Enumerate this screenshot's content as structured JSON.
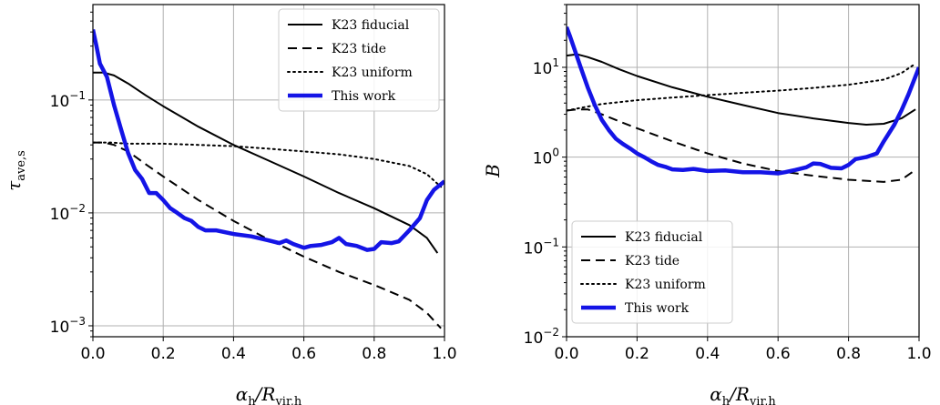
{
  "chart_data": [
    {
      "type": "line",
      "title": "",
      "xlabel": "α_h/R_vir,h",
      "ylabel": "τ_ave,s",
      "yscale": "log",
      "xlim": [
        0.0,
        1.0
      ],
      "ylim": [
        0.0008,
        0.7
      ],
      "grid": true,
      "legend_position": "top-right",
      "xticks": [
        {
          "v": 0.0,
          "label": "0.0"
        },
        {
          "v": 0.2,
          "label": "0.2"
        },
        {
          "v": 0.4,
          "label": "0.4"
        },
        {
          "v": 0.6,
          "label": "0.6"
        },
        {
          "v": 0.8,
          "label": "0.8"
        },
        {
          "v": 1.0,
          "label": "1.0"
        }
      ],
      "yticks": [
        {
          "v": 0.001,
          "base": "10",
          "exp": "−3"
        },
        {
          "v": 0.01,
          "base": "10",
          "exp": "−2"
        },
        {
          "v": 0.1,
          "base": "10",
          "exp": "−1"
        }
      ],
      "series": [
        {
          "name": "K23 fiducial",
          "style": "solid",
          "color": "#000000",
          "width": 2,
          "x": [
            0.0,
            0.03,
            0.06,
            0.1,
            0.15,
            0.2,
            0.3,
            0.4,
            0.5,
            0.6,
            0.7,
            0.8,
            0.9,
            0.95,
            0.98
          ],
          "y": [
            0.175,
            0.175,
            0.165,
            0.14,
            0.11,
            0.088,
            0.058,
            0.04,
            0.029,
            0.021,
            0.015,
            0.011,
            0.0078,
            0.006,
            0.0044
          ]
        },
        {
          "name": "K23 tide",
          "style": "dashed",
          "color": "#000000",
          "width": 2,
          "x": [
            0.0,
            0.03,
            0.06,
            0.1,
            0.15,
            0.2,
            0.3,
            0.4,
            0.5,
            0.6,
            0.7,
            0.8,
            0.9,
            0.95,
            0.99
          ],
          "y": [
            0.042,
            0.042,
            0.04,
            0.035,
            0.027,
            0.021,
            0.013,
            0.0085,
            0.0058,
            0.0041,
            0.003,
            0.0023,
            0.0017,
            0.0013,
            0.00095
          ]
        },
        {
          "name": "K23 uniform",
          "style": "dotted",
          "color": "#000000",
          "width": 2,
          "x": [
            0.0,
            0.05,
            0.1,
            0.2,
            0.3,
            0.4,
            0.5,
            0.6,
            0.7,
            0.8,
            0.9,
            0.95,
            0.99
          ],
          "y": [
            0.042,
            0.042,
            0.041,
            0.041,
            0.04,
            0.039,
            0.037,
            0.035,
            0.033,
            0.03,
            0.026,
            0.022,
            0.017
          ]
        },
        {
          "name": "This work",
          "style": "solid",
          "color": "#1414e6",
          "width": 4.5,
          "x": [
            0.0,
            0.01,
            0.02,
            0.04,
            0.06,
            0.08,
            0.1,
            0.12,
            0.14,
            0.16,
            0.18,
            0.2,
            0.22,
            0.24,
            0.26,
            0.28,
            0.3,
            0.32,
            0.35,
            0.4,
            0.45,
            0.5,
            0.53,
            0.55,
            0.57,
            0.6,
            0.62,
            0.65,
            0.68,
            0.7,
            0.72,
            0.75,
            0.78,
            0.8,
            0.82,
            0.85,
            0.87,
            0.9,
            0.93,
            0.95,
            0.97,
            1.0
          ],
          "y": [
            0.42,
            0.3,
            0.21,
            0.16,
            0.09,
            0.055,
            0.034,
            0.024,
            0.02,
            0.015,
            0.015,
            0.013,
            0.011,
            0.01,
            0.009,
            0.0085,
            0.0075,
            0.007,
            0.007,
            0.0065,
            0.0062,
            0.0057,
            0.0054,
            0.0057,
            0.0053,
            0.0049,
            0.0051,
            0.0052,
            0.0055,
            0.006,
            0.0053,
            0.0051,
            0.0047,
            0.0048,
            0.0055,
            0.0054,
            0.0056,
            0.007,
            0.009,
            0.013,
            0.016,
            0.019
          ]
        }
      ],
      "legend": [
        "K23 fiducial",
        "K23 tide",
        "K23 uniform",
        "This work"
      ]
    },
    {
      "type": "line",
      "title": "",
      "xlabel": "α_h/R_vir,h",
      "ylabel": "B",
      "yscale": "log",
      "xlim": [
        0.0,
        1.0
      ],
      "ylim": [
        0.01,
        50
      ],
      "grid": true,
      "legend_position": "lower-left",
      "xticks": [
        {
          "v": 0.0,
          "label": "0.0"
        },
        {
          "v": 0.2,
          "label": "0.2"
        },
        {
          "v": 0.4,
          "label": "0.4"
        },
        {
          "v": 0.6,
          "label": "0.6"
        },
        {
          "v": 0.8,
          "label": "0.8"
        },
        {
          "v": 1.0,
          "label": "1.0"
        }
      ],
      "yticks": [
        {
          "v": 0.01,
          "base": "10",
          "exp": "−2"
        },
        {
          "v": 0.1,
          "base": "10",
          "exp": "−1"
        },
        {
          "v": 1,
          "base": "10",
          "exp": "0"
        },
        {
          "v": 10,
          "base": "10",
          "exp": "1"
        }
      ],
      "series": [
        {
          "name": "K23 fiducial",
          "style": "solid",
          "color": "#000000",
          "width": 2,
          "x": [
            0.0,
            0.03,
            0.06,
            0.1,
            0.15,
            0.2,
            0.3,
            0.4,
            0.5,
            0.6,
            0.7,
            0.8,
            0.85,
            0.9,
            0.95,
            0.99
          ],
          "y": [
            13.5,
            14,
            13,
            11.5,
            9.5,
            8,
            6,
            4.7,
            3.8,
            3.1,
            2.7,
            2.4,
            2.3,
            2.35,
            2.7,
            3.4
          ]
        },
        {
          "name": "K23 tide",
          "style": "dashed",
          "color": "#000000",
          "width": 2,
          "x": [
            0.0,
            0.03,
            0.06,
            0.1,
            0.15,
            0.2,
            0.3,
            0.4,
            0.5,
            0.6,
            0.7,
            0.8,
            0.9,
            0.95,
            0.99
          ],
          "y": [
            3.3,
            3.4,
            3.4,
            3.0,
            2.5,
            2.1,
            1.5,
            1.1,
            0.85,
            0.7,
            0.62,
            0.56,
            0.53,
            0.56,
            0.72
          ]
        },
        {
          "name": "K23 uniform",
          "style": "dotted",
          "color": "#000000",
          "width": 2,
          "x": [
            0.0,
            0.05,
            0.1,
            0.2,
            0.3,
            0.4,
            0.5,
            0.6,
            0.7,
            0.8,
            0.9,
            0.95,
            0.99
          ],
          "y": [
            3.3,
            3.6,
            3.9,
            4.3,
            4.6,
            4.9,
            5.2,
            5.5,
            5.9,
            6.4,
            7.3,
            8.6,
            11
          ]
        },
        {
          "name": "This work",
          "style": "solid",
          "color": "#1414e6",
          "width": 4.5,
          "x": [
            0.0,
            0.01,
            0.02,
            0.04,
            0.06,
            0.08,
            0.1,
            0.12,
            0.14,
            0.16,
            0.18,
            0.2,
            0.22,
            0.24,
            0.26,
            0.28,
            0.3,
            0.33,
            0.36,
            0.4,
            0.45,
            0.5,
            0.55,
            0.6,
            0.62,
            0.65,
            0.68,
            0.7,
            0.72,
            0.75,
            0.78,
            0.8,
            0.82,
            0.85,
            0.88,
            0.9,
            0.93,
            0.95,
            0.97,
            1.0
          ],
          "y": [
            28,
            22,
            17,
            10,
            6,
            3.8,
            2.6,
            2.0,
            1.6,
            1.4,
            1.25,
            1.1,
            1.0,
            0.9,
            0.82,
            0.78,
            0.73,
            0.72,
            0.74,
            0.7,
            0.71,
            0.68,
            0.68,
            0.66,
            0.68,
            0.72,
            0.77,
            0.85,
            0.84,
            0.76,
            0.75,
            0.82,
            0.95,
            1.0,
            1.1,
            1.5,
            2.3,
            3.3,
            5.0,
            10
          ]
        }
      ],
      "legend": [
        "K23 fiducial",
        "K23 tide",
        "K23 uniform",
        "This work"
      ]
    }
  ]
}
